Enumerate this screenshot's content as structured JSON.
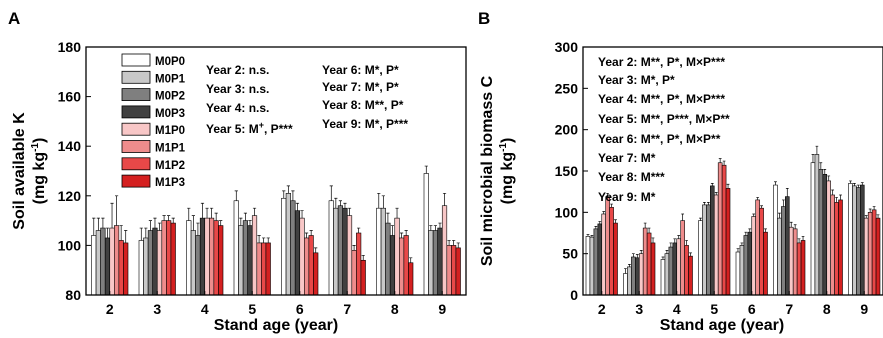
{
  "chart_data": [
    {
      "panel": "A",
      "type": "bar",
      "ylabel": "Soil available K (mg kg-1)",
      "ylabel_line1": "Soil available K",
      "ylabel_line2": "(mg kg",
      "ylabel_sup": "-1",
      "ylabel_close": ")",
      "xlabel": "Stand age (year)",
      "ylim": [
        80,
        180
      ],
      "yticks": [
        80,
        100,
        120,
        140,
        160,
        180
      ],
      "categories": [
        "2",
        "3",
        "4",
        "5",
        "6",
        "7",
        "8",
        "9"
      ],
      "grid": false,
      "legend_position": "top-left",
      "series": [
        {
          "name": "M0P0",
          "color": "#ffffff",
          "values": [
            104,
            102,
            110,
            118,
            119,
            118,
            115,
            129
          ],
          "errors": [
            7,
            5,
            5,
            4,
            3,
            6,
            6,
            3
          ]
        },
        {
          "name": "M0P1",
          "color": "#c8c8c8",
          "values": [
            106,
            103,
            106,
            108,
            121,
            115,
            115,
            106
          ],
          "errors": [
            5,
            4,
            6,
            3,
            3,
            4,
            5,
            2
          ]
        },
        {
          "name": "M0P2",
          "color": "#7f7f7f",
          "values": [
            107,
            106,
            104,
            110,
            118,
            116,
            109,
            106
          ],
          "errors": [
            4,
            4,
            5,
            3,
            4,
            2,
            4,
            2
          ]
        },
        {
          "name": "M0P3",
          "color": "#404040",
          "values": [
            103,
            107,
            111,
            108,
            114,
            115,
            104,
            107
          ],
          "errors": [
            4,
            4,
            6,
            2,
            3,
            2,
            4,
            2
          ]
        },
        {
          "name": "M1P0",
          "color": "#f8c7c7",
          "values": [
            107,
            106,
            111,
            112,
            111,
            112,
            111,
            116
          ],
          "errors": [
            10,
            3,
            4,
            3,
            3,
            3,
            4,
            5
          ]
        },
        {
          "name": "M1P1",
          "color": "#ee8c8c",
          "values": [
            108,
            110,
            111,
            101,
            103,
            98,
            103,
            100
          ],
          "errors": [
            12,
            2,
            4,
            3,
            2,
            2,
            2,
            2
          ]
        },
        {
          "name": "M1P2",
          "color": "#e84848",
          "values": [
            102,
            110,
            110,
            101,
            104,
            105,
            104,
            100
          ],
          "errors": [
            6,
            2,
            3,
            2,
            2,
            2,
            2,
            2
          ]
        },
        {
          "name": "M1P3",
          "color": "#d42020",
          "values": [
            101,
            109,
            108,
            101,
            97,
            94,
            93,
            99
          ],
          "errors": [
            5,
            2,
            2,
            2,
            2,
            2,
            2,
            2
          ]
        }
      ],
      "annotations_col1": [
        "Year 2: n.s.",
        "Year 3: n.s.",
        "Year 4: n.s."
      ],
      "annotation_year5_prefix": "Year 5: M",
      "annotation_year5_sup": "+",
      "annotation_year5_suffix": ", P***",
      "annotations_col2": [
        "Year 6: M*, P*",
        "Year 7: M*, P*",
        "Year 8: M**, P*",
        "Year 9: M*, P***"
      ]
    },
    {
      "panel": "B",
      "type": "bar",
      "ylabel": "Soil microbial biomass C (mg kg-1)",
      "ylabel_line1": "Soil microbial biomass C",
      "ylabel_line2": "(mg kg",
      "ylabel_sup": "-1",
      "ylabel_close": ")",
      "xlabel": "Stand age (year)",
      "ylim": [
        0,
        300
      ],
      "yticks": [
        0,
        50,
        100,
        150,
        200,
        250,
        300
      ],
      "categories": [
        "2",
        "3",
        "4",
        "5",
        "6",
        "7",
        "8",
        "9"
      ],
      "grid": false,
      "series": [
        {
          "name": "M0P0",
          "color": "#ffffff",
          "values": [
            71,
            26,
            43,
            90,
            52,
            133,
            160,
            135
          ],
          "errors": [
            2,
            6,
            3,
            3,
            4,
            4,
            10,
            3
          ]
        },
        {
          "name": "M0P1",
          "color": "#c8c8c8",
          "values": [
            70,
            34,
            50,
            109,
            60,
            93,
            170,
            132
          ],
          "errors": [
            2,
            3,
            4,
            3,
            3,
            6,
            10,
            3
          ]
        },
        {
          "name": "M0P2",
          "color": "#7f7f7f",
          "values": [
            80,
            46,
            58,
            109,
            72,
            107,
            152,
            130
          ],
          "errors": [
            3,
            4,
            5,
            3,
            4,
            8,
            8,
            3
          ]
        },
        {
          "name": "M0P3",
          "color": "#404040",
          "values": [
            86,
            45,
            63,
            132,
            76,
            119,
            146,
            133
          ],
          "errors": [
            3,
            4,
            5,
            3,
            4,
            10,
            6,
            3
          ]
        },
        {
          "name": "M1P0",
          "color": "#f8c7c7",
          "values": [
            98,
            50,
            68,
            121,
            95,
            82,
            138,
            93
          ],
          "errors": [
            3,
            4,
            4,
            3,
            3,
            6,
            6,
            3
          ]
        },
        {
          "name": "M1P1",
          "color": "#ee8c8c",
          "values": [
            119,
            81,
            90,
            160,
            115,
            80,
            121,
            100
          ],
          "errors": [
            4,
            6,
            8,
            5,
            3,
            5,
            6,
            4
          ]
        },
        {
          "name": "M1P2",
          "color": "#e84848",
          "values": [
            106,
            75,
            60,
            157,
            105,
            63,
            112,
            103
          ],
          "errors": [
            4,
            6,
            6,
            5,
            3,
            5,
            6,
            4
          ]
        },
        {
          "name": "M1P3",
          "color": "#d42020",
          "values": [
            87,
            63,
            47,
            129,
            76,
            66,
            115,
            93
          ],
          "errors": [
            4,
            6,
            4,
            5,
            4,
            5,
            6,
            4
          ]
        }
      ],
      "annotations": [
        "Year 2: M**, P*, M×P***",
        "Year 3: M*, P*",
        "Year 4: M**, P*, M×P***",
        "Year 5: M**, P***, M×P**",
        "Year 6: M**, P*, M×P**",
        "Year 7: M*",
        "Year 8: M***",
        "Year 9: M*"
      ]
    }
  ]
}
